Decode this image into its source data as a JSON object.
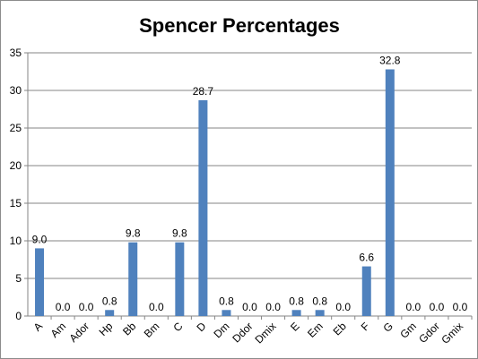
{
  "chart_data": {
    "type": "bar",
    "title": "Spencer Percentages",
    "xlabel": "",
    "ylabel": "",
    "categories": [
      "A",
      "Am",
      "Ador",
      "Hp",
      "Bb",
      "Bm",
      "C",
      "D",
      "Dm",
      "Ddor",
      "Dmix",
      "E",
      "Em",
      "Eb",
      "F",
      "G",
      "Gm",
      "Gdor",
      "Gmix"
    ],
    "values": [
      9.0,
      0.0,
      0.0,
      0.8,
      9.8,
      0.0,
      9.8,
      28.7,
      0.8,
      0.0,
      0.0,
      0.8,
      0.8,
      0.0,
      6.6,
      32.8,
      0.0,
      0.0,
      0.0
    ],
    "data_labels": [
      "9.0",
      "0.0",
      "0.0",
      "0.8",
      "9.8",
      "0.0",
      "9.8",
      "28.7",
      "0.8",
      "0.0",
      "0.0",
      "0.8",
      "0.8",
      "0.0",
      "6.6",
      "32.8",
      "0.0",
      "0.0",
      "0.0"
    ],
    "ylim": [
      0,
      35
    ],
    "yticks": [
      0,
      5,
      10,
      15,
      20,
      25,
      30,
      35
    ],
    "ytick_labels": [
      "0",
      "5",
      "10",
      "15",
      "20",
      "25",
      "30",
      "35"
    ],
    "grid": true,
    "legend": "none",
    "bar_color": "#4f81bd",
    "grid_color": "#868686"
  }
}
